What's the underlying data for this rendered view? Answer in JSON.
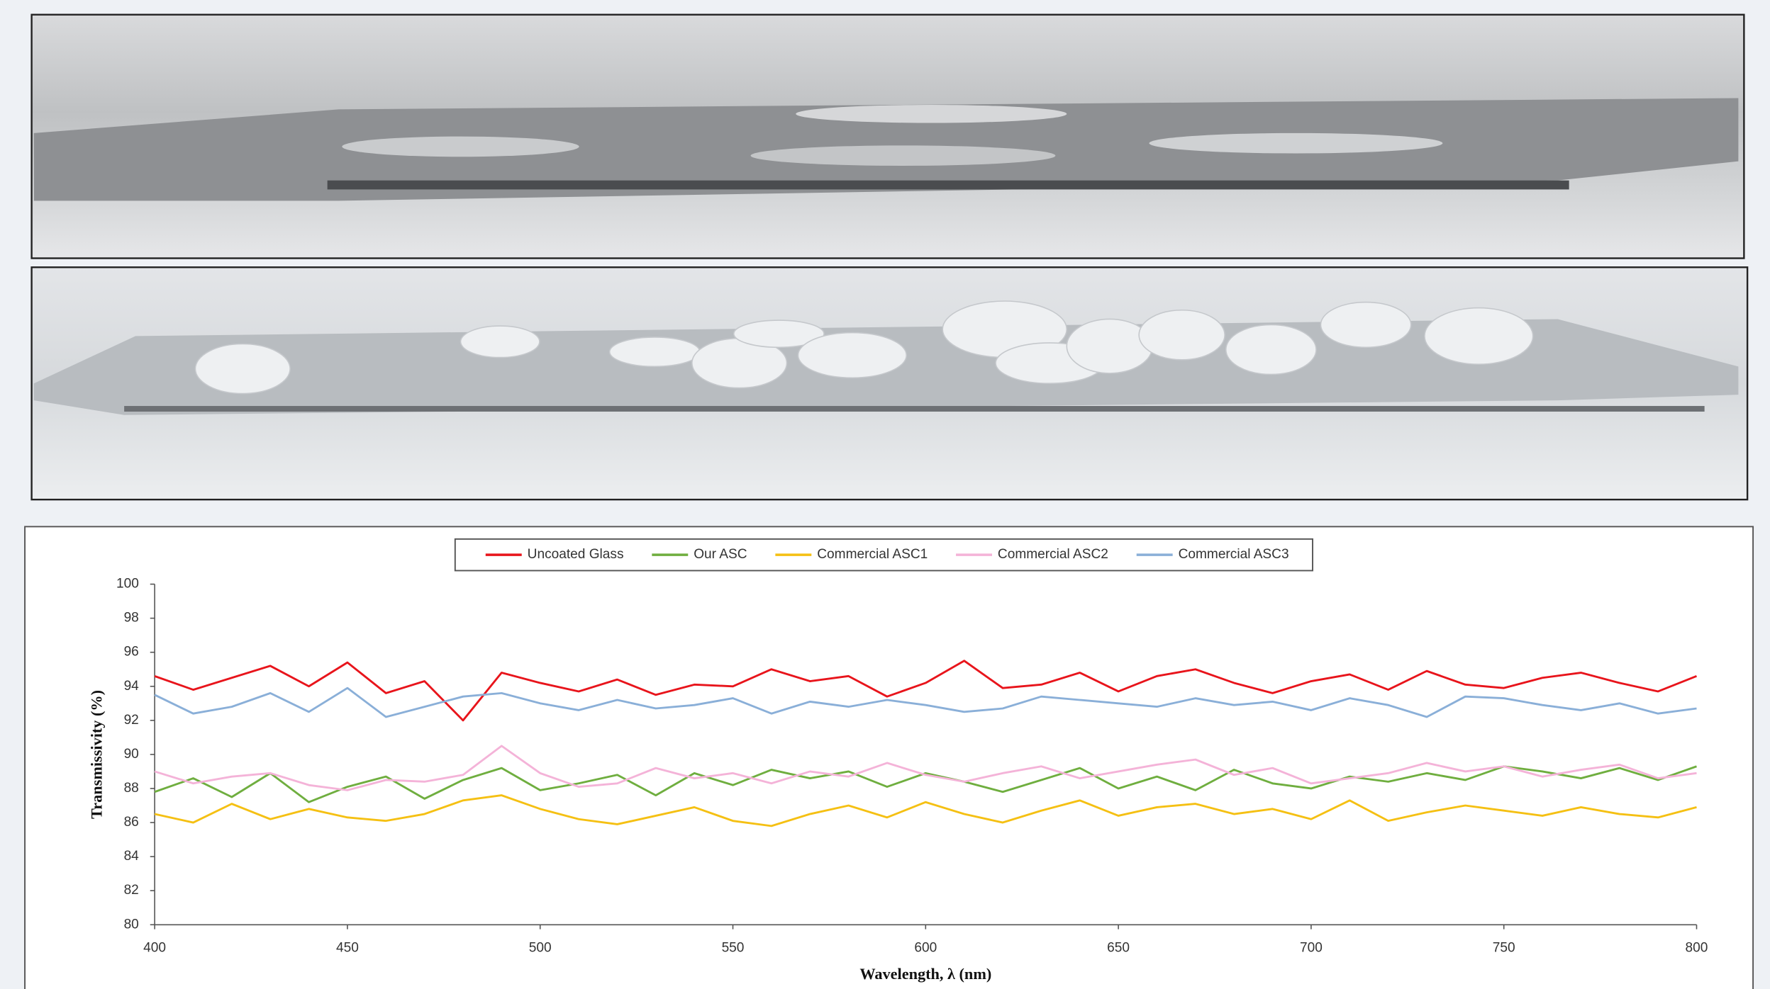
{
  "chart_data": {
    "type": "line",
    "legend": "top",
    "xlabel": "Wavelength, λ (nm)",
    "ylabel": "Transmissivity (%)",
    "x": [
      400,
      410,
      420,
      430,
      440,
      450,
      460,
      470,
      480,
      490,
      500,
      510,
      520,
      530,
      540,
      550,
      560,
      570,
      580,
      590,
      600,
      610,
      620,
      630,
      640,
      650,
      660,
      670,
      680,
      690,
      700,
      710,
      720,
      730,
      740,
      750,
      760,
      770,
      780,
      790,
      800
    ],
    "xlim": [
      400,
      800
    ],
    "xticks": [
      400,
      450,
      500,
      550,
      600,
      650,
      700,
      750,
      800
    ],
    "ylim": [
      80,
      100
    ],
    "yticks": [
      80,
      82,
      84,
      86,
      88,
      90,
      92,
      94,
      96,
      98,
      100
    ],
    "series": [
      {
        "name": "Uncoated Glass",
        "color": "#e8141b",
        "values": [
          94.6,
          93.8,
          94.5,
          95.2,
          94.0,
          95.4,
          93.6,
          94.3,
          92.0,
          94.8,
          94.2,
          93.7,
          94.4,
          93.5,
          94.1,
          94.0,
          95.0,
          94.3,
          94.6,
          93.4,
          94.2,
          95.5,
          93.9,
          94.1,
          94.8,
          93.7,
          94.6,
          95.0,
          94.2,
          93.6,
          94.3,
          94.7,
          93.8,
          94.9,
          94.1,
          93.9,
          94.5,
          94.8,
          94.2,
          93.7,
          94.6
        ]
      },
      {
        "name": "Our ASC",
        "color": "#6fae3f",
        "values": [
          87.8,
          88.6,
          87.5,
          88.9,
          87.2,
          88.1,
          88.7,
          87.4,
          88.5,
          89.2,
          87.9,
          88.3,
          88.8,
          87.6,
          88.9,
          88.2,
          89.1,
          88.6,
          89.0,
          88.1,
          88.9,
          88.4,
          87.8,
          88.5,
          89.2,
          88.0,
          88.7,
          87.9,
          89.1,
          88.3,
          88.0,
          88.7,
          88.4,
          88.9,
          88.5,
          89.3,
          89.0,
          88.6,
          89.2,
          88.5,
          89.3
        ]
      },
      {
        "name": "Commercial ASC1",
        "color": "#f5c013",
        "values": [
          86.5,
          86.0,
          87.1,
          86.2,
          86.8,
          86.3,
          86.1,
          86.5,
          87.3,
          87.6,
          86.8,
          86.2,
          85.9,
          86.4,
          86.9,
          86.1,
          85.8,
          86.5,
          87.0,
          86.3,
          87.2,
          86.5,
          86.0,
          86.7,
          87.3,
          86.4,
          86.9,
          87.1,
          86.5,
          86.8,
          86.2,
          87.3,
          86.1,
          86.6,
          87.0,
          86.7,
          86.4,
          86.9,
          86.5,
          86.3,
          86.9
        ]
      },
      {
        "name": "Commercial ASC2",
        "color": "#f4b3d8",
        "values": [
          89.0,
          88.3,
          88.7,
          88.9,
          88.2,
          87.9,
          88.5,
          88.4,
          88.8,
          90.5,
          88.9,
          88.1,
          88.3,
          89.2,
          88.6,
          88.9,
          88.3,
          89.0,
          88.7,
          89.5,
          88.8,
          88.4,
          88.9,
          89.3,
          88.6,
          89.0,
          89.4,
          89.7,
          88.8,
          89.2,
          88.3,
          88.6,
          88.9,
          89.5,
          89.0,
          89.3,
          88.7,
          89.1,
          89.4,
          88.6,
          88.9
        ]
      },
      {
        "name": "Commercial ASC3",
        "color": "#8aafd8",
        "values": [
          93.5,
          92.4,
          92.8,
          93.6,
          92.5,
          93.9,
          92.2,
          92.8,
          93.4,
          93.6,
          93.0,
          92.6,
          93.2,
          92.7,
          92.9,
          93.3,
          92.4,
          93.1,
          92.8,
          93.2,
          92.9,
          92.5,
          92.7,
          93.4,
          93.2,
          93.0,
          92.8,
          93.3,
          92.9,
          93.1,
          92.6,
          93.3,
          92.9,
          92.2,
          93.4,
          93.3,
          92.9,
          92.6,
          93.0,
          92.4,
          92.7
        ]
      }
    ]
  }
}
